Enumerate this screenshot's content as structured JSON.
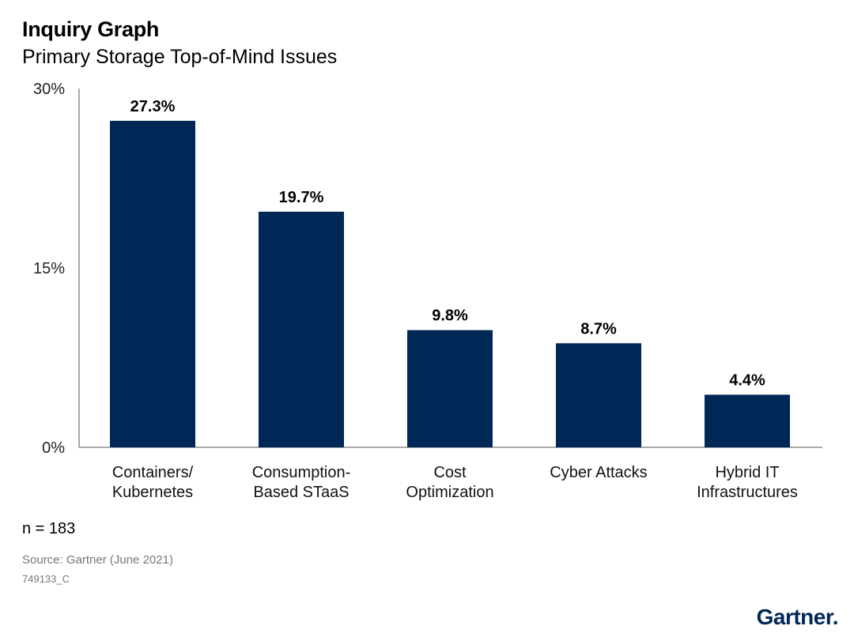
{
  "header": {
    "title": "Inquiry Graph",
    "subtitle": "Primary Storage Top-of-Mind Issues"
  },
  "footer": {
    "n": "n = 183",
    "source": "Source: Gartner (June 2021)",
    "code": "749133_C",
    "logo": "Gartner."
  },
  "colors": {
    "bar": "#002856",
    "axis": "#555555"
  },
  "chart_data": {
    "type": "bar",
    "title": "Inquiry Graph",
    "subtitle": "Primary Storage Top-of-Mind Issues",
    "categories": [
      [
        "Containers/",
        "Kubernetes"
      ],
      [
        "Consumption-",
        "Based STaaS"
      ],
      [
        "Cost",
        "Optimization"
      ],
      [
        "Cyber Attacks"
      ],
      [
        "Hybrid IT",
        "Infrastructures"
      ]
    ],
    "values": [
      27.3,
      19.7,
      9.8,
      8.7,
      4.4
    ],
    "value_labels": [
      "27.3%",
      "19.7%",
      "9.8%",
      "8.7%",
      "4.4%"
    ],
    "yticks": [
      0,
      15,
      30
    ],
    "ytick_labels": [
      "0%",
      "15%",
      "30%"
    ],
    "ylim": [
      0,
      30
    ],
    "grid": false,
    "legend": "none"
  }
}
